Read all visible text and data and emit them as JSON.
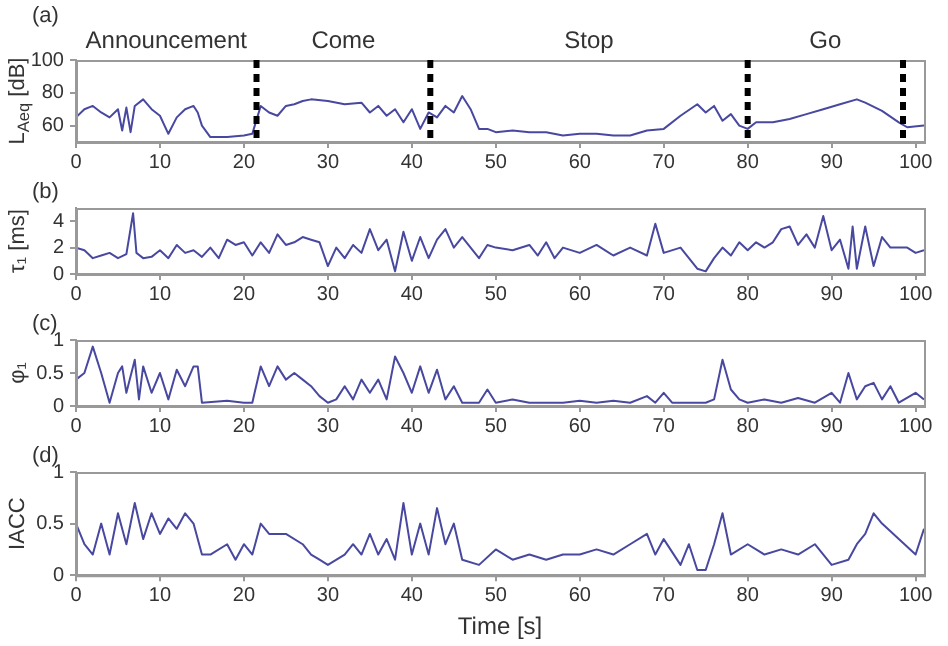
{
  "chart_data": [
    {
      "type": "line",
      "title": "(a)",
      "ylabel": "L$_{Aeq}$ [dB]",
      "xlim": [
        0,
        101
      ],
      "xticks": [
        0,
        10,
        20,
        30,
        40,
        50,
        60,
        70,
        80,
        90,
        100
      ],
      "ylim": [
        50,
        100
      ],
      "yticks": [
        60,
        80,
        100
      ],
      "grid": false,
      "legend": false,
      "marker": "none",
      "line_style": "solid",
      "annotations": [
        "Announcement",
        "Come",
        "Stop",
        "Go"
      ],
      "ref_lines": [
        {
          "axis": "x",
          "value": 21.5,
          "color": "#000000",
          "line_style": "dashed"
        },
        {
          "axis": "x",
          "value": 42.2,
          "color": "#000000",
          "line_style": "dashed"
        },
        {
          "axis": "x",
          "value": 80,
          "color": "#000000",
          "line_style": "dashed"
        },
        {
          "axis": "x",
          "value": 98.5,
          "color": "#000000",
          "line_style": "dashed"
        }
      ],
      "series": [
        {
          "color": "#4848a0",
          "x": [
            0,
            1,
            2,
            3,
            4,
            5,
            5.5,
            6,
            6.5,
            7,
            8,
            9,
            10,
            11,
            12,
            13,
            14,
            14.5,
            15,
            16,
            18,
            20,
            21,
            22,
            23,
            24,
            25,
            26,
            27,
            28,
            30,
            32,
            34,
            35,
            36,
            37,
            38,
            39,
            40,
            41,
            42,
            43,
            44,
            45,
            46,
            47,
            48,
            49,
            50,
            52,
            54,
            56,
            58,
            60,
            62,
            64,
            66,
            68,
            70,
            72,
            74,
            75,
            76,
            77,
            78,
            79,
            80,
            81,
            83,
            85,
            87,
            89,
            91,
            93,
            94,
            96,
            98,
            99,
            101
          ],
          "values": [
            65,
            70,
            72,
            68,
            65,
            70,
            57,
            71,
            56,
            72,
            76,
            70,
            66,
            55,
            65,
            70,
            72,
            68,
            60,
            53,
            53,
            54,
            55,
            72,
            68,
            66,
            72,
            73,
            75,
            76,
            75,
            73,
            74,
            68,
            72,
            66,
            70,
            62,
            70,
            58,
            68,
            65,
            72,
            68,
            78,
            70,
            58,
            58,
            56,
            57,
            56,
            56,
            54,
            55,
            55,
            54,
            54,
            57,
            58,
            66,
            73,
            68,
            72,
            63,
            67,
            60,
            58,
            62,
            62,
            64,
            67,
            70,
            73,
            76,
            74,
            69,
            62,
            59,
            60
          ]
        }
      ]
    },
    {
      "type": "line",
      "title": "(b)",
      "ylabel": "τ₁ [ms]",
      "xlim": [
        0,
        101
      ],
      "xticks": [
        0,
        10,
        20,
        30,
        40,
        50,
        60,
        70,
        80,
        90,
        100
      ],
      "ylim": [
        0,
        5
      ],
      "yticks": [
        0,
        2,
        4
      ],
      "grid": false,
      "legend": false,
      "marker": "none",
      "line_style": "solid",
      "series": [
        {
          "color": "#4848a0",
          "x": [
            0,
            1,
            2,
            3,
            4,
            5,
            6,
            6.8,
            7.2,
            8,
            9,
            10,
            11,
            12,
            13,
            14,
            15,
            16,
            17,
            18,
            19,
            20,
            21,
            22,
            23,
            24,
            25,
            26,
            27,
            28,
            29,
            30,
            31,
            32,
            33,
            34,
            35,
            36,
            37,
            38,
            39,
            40,
            41,
            42,
            43,
            44,
            45,
            46,
            47,
            48,
            49,
            50,
            52,
            54,
            55,
            56,
            57,
            58,
            60,
            62,
            64,
            66,
            68,
            69,
            70,
            72,
            74,
            75,
            76,
            77,
            78,
            79,
            80,
            81,
            82,
            83,
            84,
            85,
            86,
            87,
            88,
            89,
            90,
            91,
            92,
            92.5,
            93,
            94,
            95,
            96,
            97,
            99,
            100,
            101
          ],
          "values": [
            2,
            1.8,
            1.2,
            1.4,
            1.6,
            1.2,
            1.5,
            4.6,
            1.6,
            1.2,
            1.3,
            1.8,
            1.2,
            2.2,
            1.6,
            1.8,
            1.3,
            2,
            1.2,
            2.6,
            2.2,
            2.4,
            1.4,
            2.4,
            1.6,
            3,
            2.2,
            2.4,
            2.8,
            2.6,
            2.4,
            0.6,
            2,
            1.2,
            2.2,
            1.6,
            3.4,
            1.8,
            2.6,
            0.2,
            3.2,
            1,
            2.8,
            1.2,
            2.6,
            3.4,
            2,
            2.8,
            2,
            1.2,
            2.2,
            2,
            1.8,
            2.2,
            1.4,
            2.4,
            1.2,
            2,
            1.6,
            2.2,
            1.4,
            2,
            1.4,
            3.8,
            1.6,
            2,
            0.4,
            0.2,
            1.2,
            2,
            1.4,
            2.4,
            1.8,
            2.4,
            2,
            2.4,
            3.4,
            3.6,
            2.2,
            3,
            2,
            4.4,
            1.8,
            2.6,
            0.4,
            3.6,
            0.4,
            3.6,
            0.6,
            2.8,
            2,
            2,
            1.6,
            1.8
          ]
        }
      ]
    },
    {
      "type": "line",
      "title": "(c)",
      "ylabel": "φ₁",
      "xlim": [
        0,
        101
      ],
      "xticks": [
        0,
        10,
        20,
        30,
        40,
        50,
        60,
        70,
        80,
        90,
        100
      ],
      "ylim": [
        0,
        1
      ],
      "yticks": [
        0,
        0.5,
        1
      ],
      "grid": false,
      "legend": false,
      "marker": "none",
      "line_style": "solid",
      "series": [
        {
          "color": "#4848a0",
          "x": [
            0,
            1,
            2,
            3,
            4,
            5,
            5.5,
            6,
            7,
            7.5,
            8,
            9,
            10,
            11,
            12,
            13,
            14,
            14.5,
            15,
            18,
            20,
            21,
            22,
            23,
            24,
            25,
            26,
            27,
            28,
            29,
            30,
            31,
            32,
            33,
            34,
            35,
            36,
            37,
            38,
            39,
            40,
            41,
            42,
            43,
            44,
            45,
            46,
            48,
            49,
            50,
            52,
            54,
            56,
            58,
            60,
            62,
            64,
            66,
            68,
            69,
            70,
            71,
            73,
            75,
            76,
            77,
            78,
            79,
            80,
            82,
            84,
            86,
            88,
            90,
            91,
            92,
            93,
            94,
            95,
            96,
            97,
            98,
            100,
            101
          ],
          "values": [
            0.4,
            0.5,
            0.9,
            0.5,
            0.05,
            0.5,
            0.6,
            0.2,
            0.7,
            0.1,
            0.6,
            0.2,
            0.5,
            0.1,
            0.55,
            0.3,
            0.6,
            0.6,
            0.05,
            0.08,
            0.05,
            0.05,
            0.6,
            0.3,
            0.6,
            0.4,
            0.5,
            0.4,
            0.3,
            0.15,
            0.05,
            0.1,
            0.3,
            0.1,
            0.4,
            0.2,
            0.4,
            0.1,
            0.75,
            0.5,
            0.2,
            0.6,
            0.2,
            0.55,
            0.1,
            0.3,
            0.05,
            0.05,
            0.25,
            0.05,
            0.1,
            0.05,
            0.05,
            0.05,
            0.08,
            0.05,
            0.08,
            0.05,
            0.15,
            0.05,
            0.2,
            0.05,
            0.05,
            0.05,
            0.1,
            0.7,
            0.25,
            0.1,
            0.05,
            0.1,
            0.05,
            0.12,
            0.05,
            0.2,
            0.05,
            0.5,
            0.1,
            0.3,
            0.35,
            0.1,
            0.3,
            0.05,
            0.2,
            0.1
          ]
        }
      ]
    },
    {
      "type": "line",
      "title": "(d)",
      "ylabel": "IACC",
      "xlabel": "Time [s]",
      "xlim": [
        0,
        101
      ],
      "xticks": [
        0,
        10,
        20,
        30,
        40,
        50,
        60,
        70,
        80,
        90,
        100
      ],
      "ylim": [
        0,
        1
      ],
      "yticks": [
        0,
        0.5,
        1
      ],
      "grid": false,
      "legend": false,
      "marker": "none",
      "line_style": "solid",
      "series": [
        {
          "color": "#4848a0",
          "x": [
            0,
            1,
            2,
            3,
            4,
            5,
            6,
            7,
            8,
            9,
            10,
            11,
            12,
            13,
            14,
            15,
            16,
            18,
            19,
            20,
            21,
            22,
            23,
            25,
            27,
            28,
            29,
            30,
            32,
            33,
            34,
            35,
            36,
            37,
            38,
            39,
            40,
            41,
            42,
            43,
            44,
            45,
            46,
            48,
            50,
            52,
            54,
            56,
            58,
            60,
            62,
            64,
            66,
            68,
            69,
            70,
            72,
            73,
            74,
            75,
            76,
            77,
            78,
            80,
            82,
            84,
            86,
            88,
            90,
            92,
            93,
            94,
            95,
            96,
            98,
            100,
            101
          ],
          "values": [
            0.5,
            0.3,
            0.2,
            0.5,
            0.2,
            0.6,
            0.3,
            0.7,
            0.35,
            0.6,
            0.4,
            0.55,
            0.45,
            0.6,
            0.5,
            0.2,
            0.2,
            0.3,
            0.15,
            0.3,
            0.2,
            0.5,
            0.4,
            0.4,
            0.3,
            0.2,
            0.15,
            0.1,
            0.2,
            0.3,
            0.2,
            0.4,
            0.2,
            0.35,
            0.15,
            0.7,
            0.2,
            0.5,
            0.2,
            0.65,
            0.3,
            0.5,
            0.15,
            0.1,
            0.25,
            0.15,
            0.2,
            0.15,
            0.2,
            0.2,
            0.25,
            0.2,
            0.3,
            0.4,
            0.2,
            0.35,
            0.1,
            0.3,
            0.05,
            0.05,
            0.3,
            0.6,
            0.2,
            0.3,
            0.2,
            0.25,
            0.2,
            0.3,
            0.1,
            0.15,
            0.3,
            0.4,
            0.6,
            0.5,
            0.35,
            0.2,
            0.45
          ]
        }
      ]
    }
  ]
}
